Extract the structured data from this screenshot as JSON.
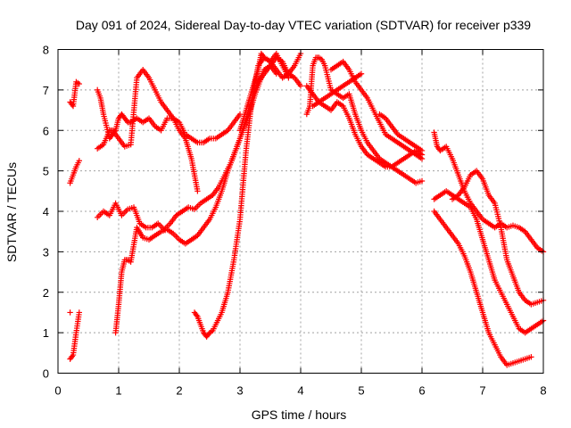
{
  "chart_data": {
    "type": "scatter",
    "title": "Day 091 of 2024, Sidereal Day-to-day VTEC variation (SDTVAR) for receiver p339",
    "xlabel": "GPS time / hours",
    "ylabel": "SDTVAR / TECUs",
    "xlim": [
      0,
      8
    ],
    "ylim": [
      0,
      8
    ],
    "xticks": [
      "0",
      "1",
      "2",
      "3",
      "4",
      "5",
      "6",
      "7",
      "8"
    ],
    "yticks": [
      "0",
      "1",
      "2",
      "3",
      "4",
      "5",
      "6",
      "7",
      "8"
    ],
    "grid": true,
    "marker": "+",
    "color": "#ff0000",
    "series": [
      {
        "name": "s1",
        "x": [
          0.2,
          0.25,
          0.3,
          0.35
        ],
        "y": [
          0.35,
          0.45,
          1.0,
          1.5
        ]
      },
      {
        "name": "s1b",
        "x": [
          0.2
        ],
        "y": [
          1.5
        ]
      },
      {
        "name": "s2",
        "x": [
          0.2,
          0.25,
          0.3,
          0.35
        ],
        "y": [
          4.7,
          4.9,
          5.1,
          5.25
        ]
      },
      {
        "name": "s3",
        "x": [
          0.2,
          0.25,
          0.3,
          0.35
        ],
        "y": [
          6.7,
          6.6,
          7.2,
          7.15
        ]
      },
      {
        "name": "s4",
        "x": [
          0.65,
          0.7,
          0.75,
          0.85,
          0.9,
          0.95,
          1.0,
          1.05,
          1.1,
          1.15,
          1.2,
          1.3,
          1.4,
          1.5,
          1.6,
          1.7,
          1.8,
          1.9,
          2.0,
          2.1,
          2.2,
          2.3,
          2.4,
          2.5,
          2.6,
          2.7,
          2.8,
          2.9,
          3.0
        ],
        "y": [
          7.0,
          6.8,
          6.4,
          5.8,
          5.9,
          6.0,
          6.3,
          6.4,
          6.3,
          6.2,
          6.2,
          6.3,
          6.2,
          6.3,
          6.1,
          6.0,
          6.3,
          6.3,
          6.2,
          5.9,
          5.8,
          5.7,
          5.7,
          5.8,
          5.8,
          5.9,
          6.0,
          6.2,
          6.4
        ]
      },
      {
        "name": "s5",
        "x": [
          0.65,
          0.7,
          0.75,
          0.85,
          0.9,
          1.0,
          1.1,
          1.2,
          1.3,
          1.4,
          1.5,
          1.6,
          1.7,
          1.8,
          1.9,
          2.0,
          2.1,
          2.2,
          2.3,
          2.4,
          2.5,
          2.6,
          2.7,
          2.8,
          2.9,
          3.0
        ],
        "y": [
          5.55,
          5.6,
          5.65,
          6.0,
          6.0,
          5.8,
          5.6,
          5.65,
          7.3,
          7.5,
          7.3,
          7.0,
          6.7,
          6.5,
          6.3,
          6.0,
          5.8,
          5.3,
          4.5,
          null,
          null,
          null,
          null,
          null,
          null,
          null
        ]
      },
      {
        "name": "s6",
        "x": [
          0.65,
          0.75,
          0.85,
          0.95,
          1.05,
          1.15,
          1.25,
          1.35,
          1.45,
          1.55,
          1.65,
          1.75,
          1.85,
          1.95,
          2.05,
          2.15,
          2.25,
          2.35,
          2.45,
          2.55,
          2.65,
          2.75,
          2.85,
          2.95,
          3.05,
          3.15,
          3.25,
          3.35
        ],
        "y": [
          3.85,
          4.0,
          3.9,
          4.2,
          3.9,
          4.05,
          4.1,
          3.7,
          3.6,
          3.6,
          3.7,
          3.55,
          3.7,
          3.9,
          4.0,
          4.1,
          4.05,
          4.2,
          4.3,
          4.4,
          4.6,
          4.9,
          5.2,
          5.6,
          6.0,
          6.4,
          6.9,
          7.3
        ]
      },
      {
        "name": "s7",
        "x": [
          0.95,
          1.0,
          1.05,
          1.1,
          1.15,
          1.2,
          1.3,
          1.4,
          1.5,
          1.6,
          1.7,
          1.8,
          1.9,
          2.0,
          2.1,
          2.2,
          2.3,
          2.4,
          2.5,
          2.6,
          2.7,
          2.8,
          2.9,
          3.0,
          3.1,
          3.2,
          3.3,
          3.4,
          3.5,
          3.6
        ],
        "y": [
          1.0,
          1.7,
          2.5,
          2.8,
          2.8,
          2.75,
          3.6,
          3.35,
          3.3,
          3.4,
          3.5,
          3.55,
          3.45,
          3.3,
          3.2,
          3.3,
          3.4,
          3.6,
          3.8,
          4.1,
          4.5,
          5.0,
          5.4,
          5.8,
          6.3,
          6.8,
          7.2,
          7.5,
          7.6,
          7.4
        ]
      },
      {
        "name": "s8",
        "x": [
          2.25,
          2.3,
          2.35,
          2.4,
          2.45,
          2.5,
          2.55,
          2.6,
          2.7,
          2.8,
          2.9,
          3.0,
          3.1,
          3.2,
          3.3,
          3.4,
          3.5,
          3.6,
          3.7,
          3.8
        ],
        "y": [
          1.5,
          1.4,
          1.2,
          1.0,
          0.9,
          1.0,
          1.05,
          1.2,
          1.5,
          2.0,
          2.8,
          3.8,
          5.5,
          6.8,
          7.6,
          7.8,
          7.7,
          7.9,
          7.6,
          7.3
        ]
      },
      {
        "name": "s9",
        "x": [
          3.0,
          3.1,
          3.2,
          3.3,
          3.35,
          3.4,
          3.5,
          3.6,
          3.7,
          3.8,
          3.9,
          4.0
        ],
        "y": [
          6.0,
          6.5,
          7.0,
          7.5,
          7.9,
          7.8,
          7.7,
          7.5,
          7.3,
          7.4,
          7.6,
          7.9
        ]
      },
      {
        "name": "s10",
        "x": [
          3.3,
          3.4,
          3.5,
          3.6,
          3.7,
          3.8,
          3.9,
          4.0
        ],
        "y": [
          7.2,
          7.4,
          7.6,
          7.8,
          7.7,
          7.4,
          7.3,
          7.1
        ]
      },
      {
        "name": "s11",
        "x": [
          4.1,
          4.15,
          4.2,
          4.25,
          4.3,
          4.35,
          4.4,
          4.5,
          4.6,
          4.7,
          4.8,
          4.9,
          5.0,
          5.1,
          5.2,
          5.3,
          5.4,
          5.5,
          5.6,
          5.7,
          5.8,
          5.9,
          6.0
        ],
        "y": [
          6.4,
          6.6,
          7.6,
          7.8,
          7.8,
          7.75,
          7.6,
          7.0,
          6.9,
          6.8,
          6.9,
          6.4,
          6.0,
          5.7,
          5.5,
          5.3,
          5.2,
          5.1,
          5.0,
          4.9,
          4.8,
          4.7,
          4.75
        ]
      },
      {
        "name": "s12",
        "x": [
          4.1,
          4.2,
          4.3,
          4.4,
          4.5,
          4.6,
          4.7,
          4.8,
          4.9,
          5.0,
          5.1,
          5.2,
          5.3,
          5.4,
          5.5,
          5.6,
          5.7,
          5.8,
          5.9,
          6.0
        ],
        "y": [
          7.1,
          6.9,
          6.7,
          6.6,
          6.5,
          6.7,
          6.6,
          6.3,
          5.9,
          5.6,
          5.4,
          5.3,
          5.2,
          5.1,
          5.1,
          5.2,
          5.3,
          5.4,
          5.5,
          5.4
        ]
      },
      {
        "name": "s13",
        "x": [
          4.5,
          4.6,
          4.7,
          4.8,
          4.9,
          5.0,
          5.1,
          5.2,
          5.3,
          5.4,
          5.5,
          5.6,
          5.7,
          5.8,
          5.9,
          6.0
        ],
        "y": [
          7.5,
          7.6,
          7.7,
          7.5,
          7.2,
          7.0,
          6.8,
          6.5,
          6.2,
          5.9,
          5.8,
          5.7,
          5.6,
          5.5,
          5.4,
          5.3
        ]
      },
      {
        "name": "s14",
        "x": [
          4.2,
          4.3,
          4.4,
          4.5,
          4.6,
          4.7,
          4.8,
          4.9,
          5.0
        ],
        "y": [
          6.6,
          6.7,
          6.8,
          6.9,
          7.0,
          7.1,
          7.2,
          7.3,
          7.4
        ]
      },
      {
        "name": "s15",
        "x": [
          5.3,
          5.4,
          5.5,
          5.6,
          5.7,
          5.8,
          5.9,
          6.0
        ],
        "y": [
          6.4,
          6.3,
          6.1,
          5.9,
          5.8,
          5.7,
          5.6,
          5.5
        ]
      },
      {
        "name": "s16",
        "x": [
          6.2,
          6.25,
          6.3,
          6.4,
          6.5,
          6.6,
          6.7,
          6.8,
          6.9,
          7.0,
          7.1,
          7.2,
          7.3,
          7.4,
          7.5,
          7.6,
          7.7,
          7.8,
          7.9,
          8.0
        ],
        "y": [
          5.95,
          5.6,
          5.5,
          5.6,
          5.3,
          4.9,
          4.5,
          4.2,
          4.0,
          3.8,
          3.7,
          3.6,
          3.7,
          3.6,
          3.65,
          3.6,
          3.5,
          3.3,
          3.1,
          3.0
        ]
      },
      {
        "name": "s17",
        "x": [
          6.2,
          6.3,
          6.4,
          6.5,
          6.6,
          6.7,
          6.8,
          6.9,
          7.0,
          7.1,
          7.2,
          7.3,
          7.4,
          7.5,
          7.6,
          7.7,
          7.8,
          7.9,
          8.0
        ],
        "y": [
          4.3,
          4.4,
          4.5,
          4.4,
          4.3,
          4.2,
          4.1,
          3.8,
          3.3,
          2.8,
          2.3,
          2.0,
          1.7,
          1.4,
          1.1,
          1.0,
          1.1,
          1.2,
          1.3
        ]
      },
      {
        "name": "s18",
        "x": [
          6.2,
          6.3,
          6.4,
          6.5,
          6.6,
          6.7,
          6.8,
          6.9,
          7.0,
          7.1,
          7.2,
          7.3,
          7.4,
          7.5,
          7.6,
          7.7,
          7.8
        ],
        "y": [
          4.0,
          3.8,
          3.6,
          3.4,
          3.2,
          2.9,
          2.5,
          2.0,
          1.5,
          1.0,
          0.7,
          0.4,
          0.2,
          0.25,
          0.3,
          0.35,
          0.4
        ]
      },
      {
        "name": "s19",
        "x": [
          6.5,
          6.6,
          6.7,
          6.8,
          6.9,
          7.0,
          7.1,
          7.2,
          7.3,
          7.4,
          7.5,
          7.6,
          7.7,
          7.8,
          7.9,
          8.0
        ],
        "y": [
          4.3,
          4.4,
          4.6,
          4.9,
          5.0,
          4.8,
          4.4,
          4.2,
          3.6,
          2.8,
          2.4,
          2.0,
          1.8,
          1.7,
          1.75,
          1.8
        ]
      }
    ]
  }
}
